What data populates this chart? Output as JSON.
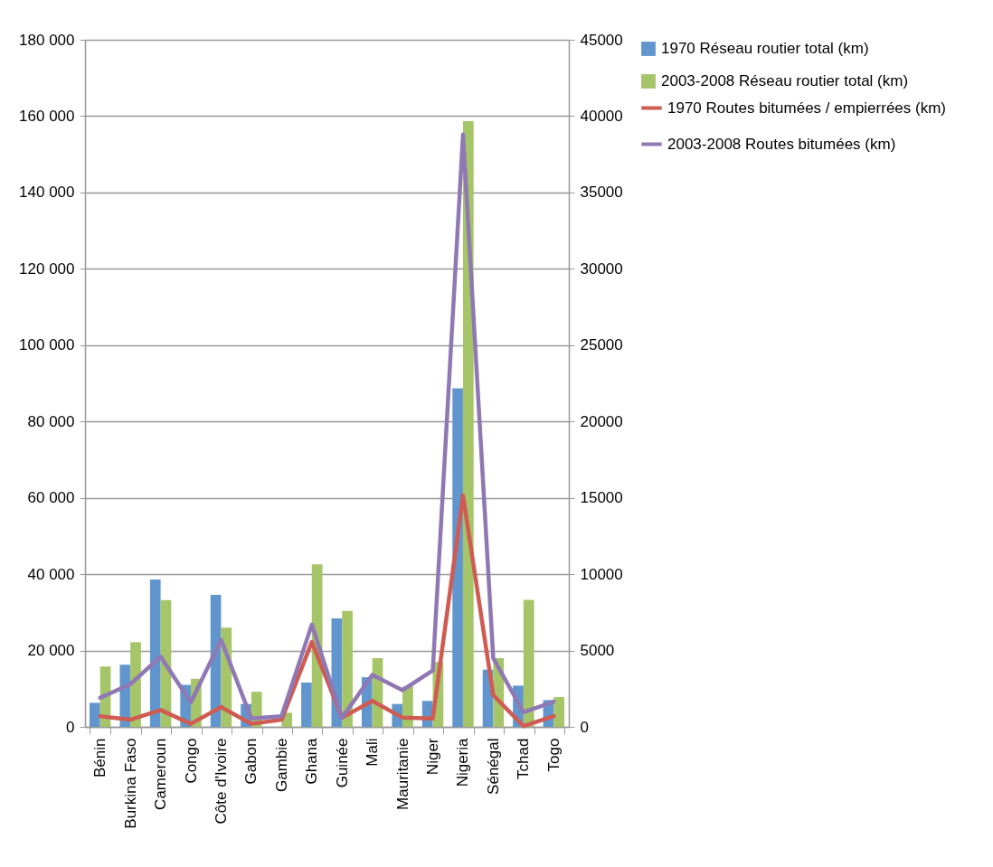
{
  "chart_data": {
    "type": "bar",
    "categories": [
      "Bénin",
      "Burkina Faso",
      "Cameroun",
      "Congo",
      "Côte d'Ivoire",
      "Gabon",
      "Gambie",
      "Ghana",
      "Guinée",
      "Mali",
      "Mauritanie",
      "Niger",
      "Nigeria",
      "Sénégal",
      "Tchad",
      "Togo"
    ],
    "series": [
      {
        "name": "1970 Réseau routier total (km)",
        "color": "#6096cd",
        "values": [
          6300,
          16300,
          38600,
          11000,
          34600,
          6000,
          null,
          11600,
          28400,
          13000,
          6000,
          6800,
          88700,
          15000,
          10800,
          7000
        ]
      },
      {
        "name": "2003-2008 Réseau routier total (km)",
        "color": "#a6c468",
        "values": [
          15800,
          22200,
          33200,
          12600,
          26000,
          9200,
          3700,
          42600,
          30400,
          18000,
          10600,
          17000,
          158700,
          18000,
          33300,
          7800
        ]
      },
      {
        "name": "1970 Routes bitumées / empierrées (km)",
        "type": "line",
        "axis": "y2",
        "color": "#cf5b52",
        "values": [
          700,
          470,
          1100,
          200,
          1300,
          200,
          470,
          5560,
          600,
          1700,
          600,
          550,
          15150,
          2070,
          50,
          700
        ]
      },
      {
        "name": "2003-2008 Routes bitumées (km)",
        "type": "line",
        "axis": "y2",
        "color": "#8f78b3",
        "values": [
          1900,
          2800,
          4600,
          1600,
          5700,
          550,
          700,
          6700,
          600,
          3400,
          2400,
          3700,
          38800,
          4500,
          950,
          1650
        ]
      }
    ],
    "ylim": [
      0,
      180000
    ],
    "yticks": [
      {
        "value": 0,
        "label": "0"
      },
      {
        "value": 20000,
        "label": "20 000"
      },
      {
        "value": 40000,
        "label": "40 000"
      },
      {
        "value": 60000,
        "label": "60 000"
      },
      {
        "value": 80000,
        "label": "80 000"
      },
      {
        "value": 100000,
        "label": "100 000"
      },
      {
        "value": 120000,
        "label": "120 000"
      },
      {
        "value": 140000,
        "label": "140 000"
      },
      {
        "value": 160000,
        "label": "160 000"
      },
      {
        "value": 180000,
        "label": "180 000"
      }
    ],
    "y2lim": [
      0,
      45000
    ],
    "y2ticks": [
      0,
      5000,
      10000,
      15000,
      20000,
      25000,
      30000,
      35000,
      40000,
      45000
    ],
    "grid": "y",
    "legend": "right"
  }
}
